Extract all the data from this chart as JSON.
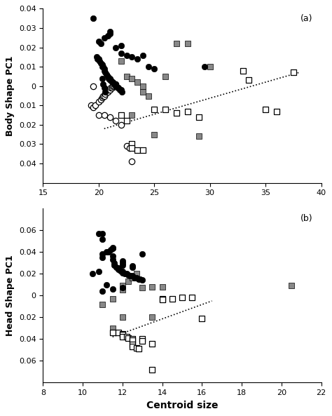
{
  "panel_a": {
    "title": "(a)",
    "ylabel": "Body Shape PC1",
    "xlim": [
      15,
      40
    ],
    "ylim": [
      -0.05,
      0.04
    ],
    "yticks": [
      -0.04,
      -0.03,
      -0.02,
      -0.01,
      0.0,
      0.01,
      0.02,
      0.03,
      0.04
    ],
    "ytick_labels": [
      "0.04",
      "0.03",
      "0.02",
      "0.01",
      "0",
      "0.01",
      "0.02",
      "0.03",
      "0.04"
    ],
    "xticks": [
      15,
      20,
      25,
      30,
      35,
      40
    ],
    "black_circles": [
      [
        20.0,
        0.023
      ],
      [
        20.2,
        0.022
      ],
      [
        20.5,
        0.025
      ],
      [
        20.8,
        0.026
      ],
      [
        21.0,
        0.028
      ],
      [
        21.5,
        0.02
      ],
      [
        22.0,
        0.021
      ],
      [
        22.5,
        0.016
      ],
      [
        23.0,
        0.015
      ],
      [
        23.5,
        0.014
      ],
      [
        24.0,
        0.016
      ],
      [
        24.5,
        0.01
      ],
      [
        25.0,
        0.009
      ],
      [
        19.5,
        0.035
      ],
      [
        21.0,
        0.027
      ],
      [
        19.8,
        0.015
      ],
      [
        19.9,
        0.014
      ],
      [
        20.0,
        0.014
      ],
      [
        20.1,
        0.013
      ],
      [
        20.2,
        0.012
      ],
      [
        20.3,
        0.011
      ],
      [
        20.3,
        0.01
      ],
      [
        20.4,
        0.01
      ],
      [
        20.5,
        0.009
      ],
      [
        20.5,
        0.008
      ],
      [
        20.6,
        0.007
      ],
      [
        20.7,
        0.006
      ],
      [
        20.8,
        0.005
      ],
      [
        20.9,
        0.004
      ],
      [
        21.0,
        0.004
      ],
      [
        21.0,
        0.003
      ],
      [
        21.1,
        0.003
      ],
      [
        21.2,
        0.002
      ],
      [
        21.3,
        0.002
      ],
      [
        21.4,
        0.001
      ],
      [
        21.5,
        0.001
      ],
      [
        21.5,
        0.0
      ],
      [
        21.6,
        0.0
      ],
      [
        21.7,
        -0.001
      ],
      [
        21.8,
        -0.001
      ],
      [
        21.9,
        -0.002
      ],
      [
        22.0,
        -0.002
      ],
      [
        22.1,
        -0.003
      ],
      [
        20.3,
        0.004
      ],
      [
        20.4,
        0.001
      ],
      [
        20.5,
        -0.001
      ],
      [
        20.6,
        -0.003
      ],
      [
        29.5,
        0.01
      ],
      [
        22.0,
        0.017
      ]
    ],
    "open_circles": [
      [
        19.3,
        -0.01
      ],
      [
        19.5,
        -0.011
      ],
      [
        19.7,
        -0.01
      ],
      [
        19.5,
        0.0
      ],
      [
        20.0,
        -0.008
      ],
      [
        20.0,
        -0.015
      ],
      [
        20.2,
        -0.007
      ],
      [
        20.3,
        -0.006
      ],
      [
        20.4,
        -0.005
      ],
      [
        20.5,
        -0.005
      ],
      [
        20.5,
        -0.015
      ],
      [
        20.6,
        -0.004
      ],
      [
        20.7,
        -0.003
      ],
      [
        20.8,
        -0.003
      ],
      [
        20.9,
        -0.002
      ],
      [
        21.0,
        -0.002
      ],
      [
        21.0,
        -0.016
      ],
      [
        21.1,
        -0.001
      ],
      [
        21.2,
        -0.001
      ],
      [
        21.3,
        0.0
      ],
      [
        21.4,
        0.0
      ],
      [
        21.5,
        0.001
      ],
      [
        21.5,
        -0.018
      ],
      [
        22.0,
        -0.02
      ],
      [
        22.5,
        -0.031
      ],
      [
        22.8,
        -0.032
      ],
      [
        23.0,
        -0.039
      ]
    ],
    "gray_squares": [
      [
        22.0,
        0.013
      ],
      [
        22.5,
        0.005
      ],
      [
        23.0,
        0.004
      ],
      [
        23.5,
        0.002
      ],
      [
        24.0,
        0.0
      ],
      [
        24.5,
        -0.005
      ],
      [
        25.0,
        -0.025
      ],
      [
        26.0,
        0.005
      ],
      [
        27.0,
        0.022
      ],
      [
        28.0,
        0.022
      ],
      [
        29.0,
        -0.026
      ],
      [
        30.0,
        0.01
      ],
      [
        23.0,
        -0.015
      ],
      [
        24.0,
        -0.003
      ]
    ],
    "open_squares": [
      [
        22.0,
        -0.015
      ],
      [
        22.5,
        -0.018
      ],
      [
        23.0,
        -0.03
      ],
      [
        23.0,
        -0.032
      ],
      [
        23.5,
        -0.033
      ],
      [
        24.0,
        -0.033
      ],
      [
        25.0,
        -0.012
      ],
      [
        26.0,
        -0.012
      ],
      [
        27.0,
        -0.014
      ],
      [
        28.0,
        -0.013
      ],
      [
        29.0,
        -0.016
      ],
      [
        33.0,
        0.008
      ],
      [
        33.5,
        0.003
      ],
      [
        35.0,
        -0.012
      ],
      [
        36.0,
        -0.013
      ],
      [
        37.5,
        0.007
      ]
    ],
    "trend_x": [
      20.5,
      38.0
    ],
    "trend_y": [
      -0.022,
      0.007
    ]
  },
  "panel_b": {
    "title": "(b)",
    "ylabel": "Head Shape PC1",
    "xlabel": "Centroid size",
    "xlim": [
      8,
      22
    ],
    "ylim": [
      -0.08,
      0.08
    ],
    "yticks": [
      -0.06,
      -0.04,
      -0.02,
      0.0,
      0.02,
      0.04,
      0.06
    ],
    "ytick_labels": [
      "0.06",
      "0.04",
      "0.02",
      "0",
      "0.02",
      "0.04",
      "0.06"
    ],
    "xticks": [
      8,
      10,
      12,
      14,
      16,
      18,
      20,
      22
    ],
    "black_circles": [
      [
        10.5,
        0.02
      ],
      [
        10.8,
        0.022
      ],
      [
        10.8,
        0.057
      ],
      [
        11.0,
        0.057
      ],
      [
        11.0,
        0.052
      ],
      [
        11.0,
        0.035
      ],
      [
        11.0,
        0.038
      ],
      [
        11.0,
        0.004
      ],
      [
        11.2,
        0.04
      ],
      [
        11.2,
        0.01
      ],
      [
        11.3,
        0.04
      ],
      [
        11.4,
        0.042
      ],
      [
        11.5,
        0.043
      ],
      [
        11.5,
        0.044
      ],
      [
        11.5,
        0.036
      ],
      [
        11.5,
        0.033
      ],
      [
        11.5,
        0.006
      ],
      [
        11.6,
        0.03
      ],
      [
        11.6,
        0.028
      ],
      [
        11.7,
        0.026
      ],
      [
        11.8,
        0.025
      ],
      [
        11.8,
        0.024
      ],
      [
        11.9,
        0.023
      ],
      [
        12.0,
        0.022
      ],
      [
        12.0,
        0.021
      ],
      [
        12.0,
        0.032
      ],
      [
        12.0,
        0.03
      ],
      [
        12.0,
        0.028
      ],
      [
        12.0,
        0.007
      ],
      [
        12.1,
        0.02
      ],
      [
        12.2,
        0.02
      ],
      [
        12.3,
        0.019
      ],
      [
        12.4,
        0.018
      ],
      [
        12.5,
        0.018
      ],
      [
        12.5,
        0.027
      ],
      [
        12.5,
        0.026
      ],
      [
        12.6,
        0.016
      ],
      [
        12.7,
        0.016
      ],
      [
        12.8,
        0.015
      ],
      [
        12.9,
        0.015
      ],
      [
        13.0,
        0.014
      ],
      [
        13.0,
        0.038
      ]
    ],
    "gray_squares": [
      [
        11.0,
        -0.008
      ],
      [
        11.5,
        -0.003
      ],
      [
        11.5,
        -0.03
      ],
      [
        12.0,
        0.005
      ],
      [
        12.0,
        0.009
      ],
      [
        12.0,
        -0.02
      ],
      [
        12.3,
        0.013
      ],
      [
        12.5,
        0.016
      ],
      [
        12.7,
        0.02
      ],
      [
        13.0,
        0.007
      ],
      [
        13.5,
        0.008
      ],
      [
        13.5,
        -0.02
      ],
      [
        14.0,
        0.008
      ],
      [
        20.5,
        0.009
      ]
    ],
    "open_squares": [
      [
        11.5,
        -0.034
      ],
      [
        11.8,
        -0.034
      ],
      [
        12.0,
        -0.035
      ],
      [
        12.0,
        -0.036
      ],
      [
        12.0,
        -0.038
      ],
      [
        12.2,
        -0.038
      ],
      [
        12.3,
        -0.039
      ],
      [
        12.5,
        -0.04
      ],
      [
        12.5,
        -0.041
      ],
      [
        12.5,
        -0.045
      ],
      [
        12.5,
        -0.047
      ],
      [
        12.7,
        -0.048
      ],
      [
        12.8,
        -0.049
      ],
      [
        13.0,
        -0.04
      ],
      [
        13.0,
        -0.042
      ],
      [
        13.5,
        -0.044
      ],
      [
        13.5,
        -0.068
      ],
      [
        14.0,
        -0.003
      ],
      [
        14.0,
        -0.004
      ],
      [
        14.5,
        -0.003
      ],
      [
        15.0,
        -0.002
      ],
      [
        15.5,
        -0.002
      ],
      [
        16.0,
        -0.021
      ]
    ],
    "trend_x": [
      11.5,
      16.5
    ],
    "trend_y": [
      -0.038,
      -0.005
    ]
  },
  "gray_color": "#888888",
  "bg_color": "#ffffff",
  "marker_size": 6,
  "linewidth": 1.2
}
